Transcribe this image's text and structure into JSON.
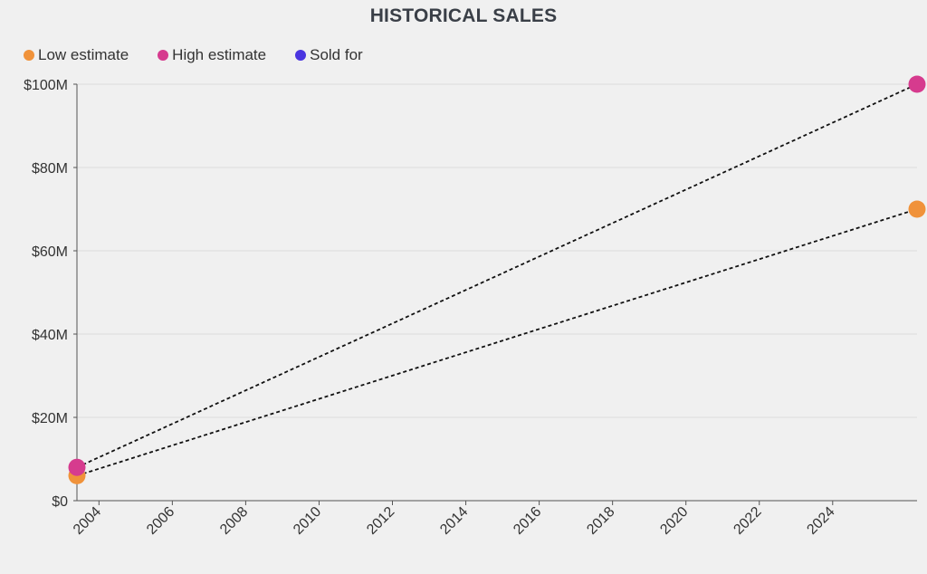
{
  "chart_data": {
    "type": "line",
    "title": "HISTORICAL SALES",
    "xlabel": "",
    "ylabel": "",
    "x_ticks": [
      "2004",
      "2006",
      "2008",
      "2010",
      "2012",
      "2014",
      "2016",
      "2018",
      "2020",
      "2022",
      "2024"
    ],
    "y_ticks": [
      "$0",
      "$20M",
      "$40M",
      "$60M",
      "$80M",
      "$100M"
    ],
    "xlim": [
      2003.4,
      2026.3
    ],
    "ylim": [
      0,
      100
    ],
    "grid": true,
    "legend_position": "top-left",
    "series": [
      {
        "name": "Low estimate",
        "color": "#f0923a",
        "line_style": "dashed",
        "x": [
          2003.4,
          2026.3
        ],
        "y": [
          6,
          70
        ]
      },
      {
        "name": "High estimate",
        "color": "#d63b8e",
        "line_style": "dashed",
        "x": [
          2003.4,
          2026.3
        ],
        "y": [
          8,
          100
        ]
      },
      {
        "name": "Sold for",
        "color": "#4a35e0",
        "line_style": "none",
        "x": [],
        "y": []
      }
    ]
  }
}
